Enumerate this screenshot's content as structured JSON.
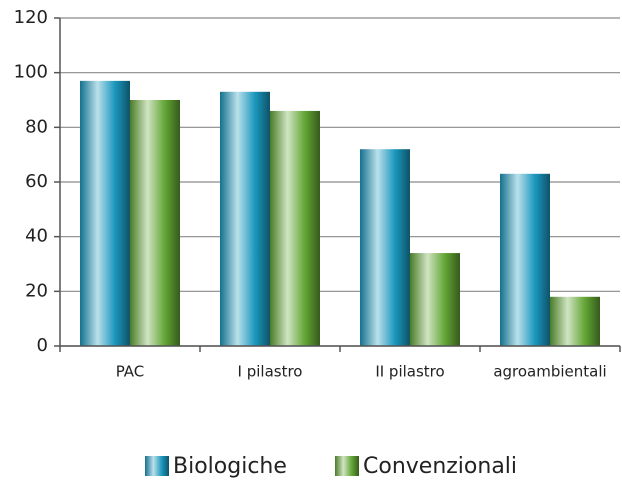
{
  "chart_data": {
    "type": "bar",
    "categories": [
      "PAC",
      "I pilastro",
      "II pilastro",
      "agroambientali"
    ],
    "series": [
      {
        "name": "Biologiche",
        "color": "#1a97bd",
        "values": [
          97,
          93,
          72,
          63
        ]
      },
      {
        "name": "Convenzionali",
        "color": "#62a534",
        "values": [
          90,
          86,
          34,
          18
        ]
      }
    ],
    "ylim": [
      0,
      120
    ],
    "yticks": [
      0,
      20,
      40,
      60,
      80,
      100,
      120
    ],
    "grid": true,
    "legend": "bottom"
  }
}
